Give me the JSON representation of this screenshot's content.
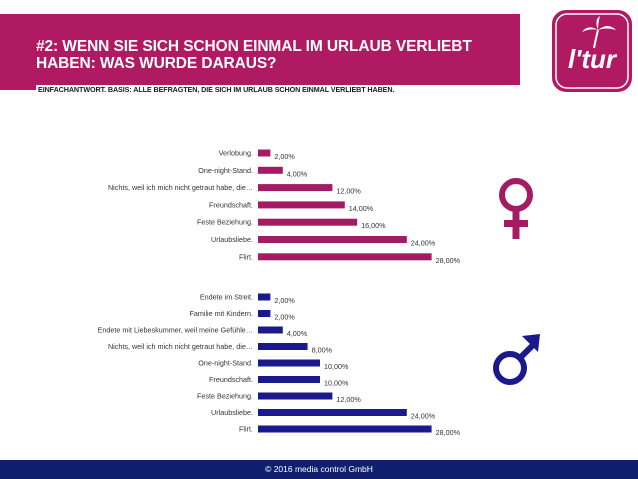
{
  "header": {
    "title": "#2: WENN SIE SICH SCHON EINMAL IM URLAUB VERLIEBT HABEN: WAS WURDE DARAUS?",
    "subtitle": "EINFACHANTWORT. BASIS: ALLE BEFRAGTEN, DIE SICH IM URLAUB SCHON EINMAL VERLIEBT HABEN.",
    "logo_text": "l'tur"
  },
  "footer": {
    "copyright": "© 2016 media control GmbH"
  },
  "icons": {
    "female": "female-symbol-icon",
    "male": "male-symbol-icon"
  },
  "colors": {
    "brand": "#b01a63",
    "female": "#a31c63",
    "male": "#1a1a8c",
    "footer": "#10206e"
  },
  "chart_data": [
    {
      "type": "bar",
      "orientation": "horizontal",
      "series_name": "Frauen",
      "color": "#a31c63",
      "categories": [
        "Verlobung.",
        "One-night-Stand.",
        "Nichts, weil ich mich nicht getraut habe, die…",
        "Freundschaft.",
        "Feste Beziehung.",
        "Urlaubsliebe.",
        "Flirt."
      ],
      "values": [
        2,
        4,
        12,
        14,
        16,
        24,
        28
      ],
      "labels": [
        "2,00%",
        "4,00%",
        "12,00%",
        "14,00%",
        "16,00%",
        "24,00%",
        "28,00%"
      ],
      "xlim": [
        0,
        30
      ]
    },
    {
      "type": "bar",
      "orientation": "horizontal",
      "series_name": "Männer",
      "color": "#1a1a8c",
      "categories": [
        "Endete im Streit.",
        "Familie mit Kindern.",
        "Endete mit Liebeskummer, weil meine Gefühle…",
        "Nichts, weil ich mich nicht getraut habe, die…",
        "One-night-Stand.",
        "Freundschaft.",
        "Feste Beziehung.",
        "Urlaubsliebe.",
        "Flirt."
      ],
      "values": [
        2,
        2,
        4,
        8,
        10,
        10,
        12,
        24,
        28
      ],
      "labels": [
        "2,00%",
        "2,00%",
        "4,00%",
        "8,00%",
        "10,00%",
        "10,00%",
        "12,00%",
        "24,00%",
        "28,00%"
      ],
      "xlim": [
        0,
        30
      ]
    }
  ]
}
